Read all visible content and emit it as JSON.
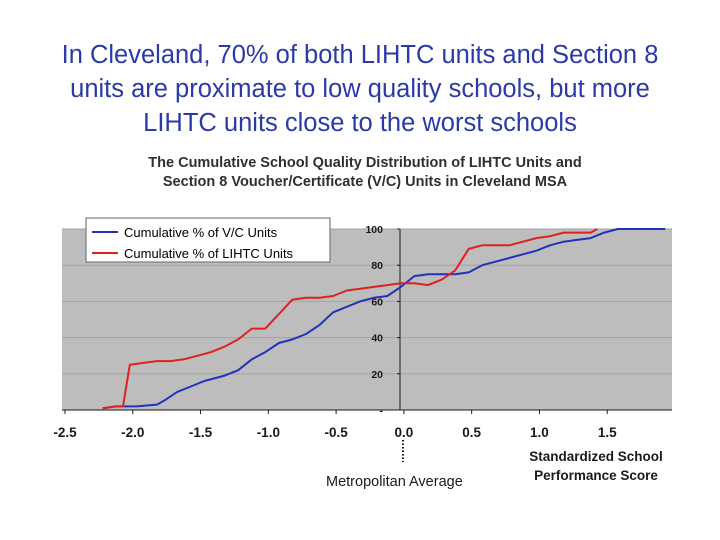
{
  "slide": {
    "title_lines": [
      "In Cleveland, 70% of both LIHTC units and Section 8",
      "units are proximate to low quality schools, but more",
      "LIHTC units close to the worst schools"
    ]
  },
  "chart_data": {
    "type": "line",
    "title_lines": [
      "The Cumulative School Quality Distribution of LIHTC Units and",
      "Section 8 Voucher/Certificate (V/C) Units in Cleveland MSA"
    ],
    "xlabel_lines": [
      "Standardized School",
      "Performance Score"
    ],
    "annotation": "Metropolitan Average",
    "x_ticks": [
      "-2.5",
      "-2.0",
      "-1.5",
      "-1.0",
      "-0.5",
      "0.0",
      "0.5",
      "1.0",
      "1.5"
    ],
    "x_tick_values": [
      -2.5,
      -2.0,
      -1.5,
      -1.0,
      -0.5,
      0.0,
      0.5,
      1.0,
      1.5
    ],
    "y_ticks": [
      "-",
      "20",
      "40",
      "60",
      "80",
      "100"
    ],
    "y_tick_values": [
      0,
      20,
      40,
      60,
      80,
      100
    ],
    "xlim": [
      -2.5,
      2.0
    ],
    "ylim": [
      0,
      100
    ],
    "grid": "horizontal",
    "legend_position": "top-left",
    "series": [
      {
        "name": "Cumulative % of V/C Units",
        "color": "#2233bb",
        "x": [
          -2.2,
          -2.1,
          -1.95,
          -1.8,
          -1.75,
          -1.65,
          -1.55,
          -1.45,
          -1.3,
          -1.2,
          -1.1,
          -1.0,
          -0.9,
          -0.8,
          -0.7,
          -0.6,
          -0.5,
          -0.4,
          -0.3,
          -0.2,
          -0.1,
          0.0,
          0.1,
          0.2,
          0.4,
          0.5,
          0.6,
          0.75,
          0.9,
          1.0,
          1.1,
          1.2,
          1.3,
          1.4,
          1.5,
          1.6,
          1.7,
          1.8,
          1.95
        ],
        "y": [
          1,
          2,
          2,
          3,
          5,
          10,
          13,
          16,
          19,
          22,
          28,
          32,
          37,
          39,
          42,
          47,
          54,
          57,
          60,
          62,
          63,
          68,
          74,
          75,
          75,
          76,
          80,
          83,
          86,
          88,
          91,
          93,
          94,
          95,
          98,
          100,
          100,
          100,
          100
        ]
      },
      {
        "name": "Cumulative % of LIHTC Units",
        "color": "#e02020",
        "x": [
          -2.2,
          -2.1,
          -2.05,
          -2.0,
          -1.9,
          -1.8,
          -1.7,
          -1.6,
          -1.5,
          -1.4,
          -1.3,
          -1.2,
          -1.1,
          -1.0,
          -0.9,
          -0.8,
          -0.7,
          -0.6,
          -0.5,
          -0.4,
          -0.3,
          -0.2,
          -0.1,
          0.0,
          0.1,
          0.2,
          0.3,
          0.4,
          0.5,
          0.6,
          0.7,
          0.8,
          0.9,
          1.0,
          1.1,
          1.2,
          1.3,
          1.4,
          1.45
        ],
        "y": [
          1,
          2,
          2,
          25,
          26,
          27,
          27,
          28,
          30,
          32,
          35,
          39,
          45,
          45,
          53,
          61,
          62,
          62,
          63,
          66,
          67,
          68,
          69,
          70,
          70,
          69,
          72,
          77,
          89,
          91,
          91,
          91,
          93,
          95,
          96,
          98,
          98,
          98,
          100
        ]
      }
    ]
  }
}
